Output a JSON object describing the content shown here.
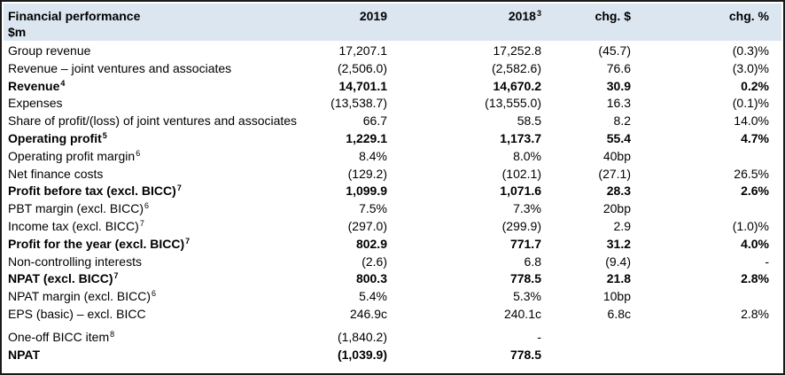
{
  "header": {
    "title": "Financial performance",
    "unit": "$m",
    "col_2019": "2019",
    "col_2018": "2018",
    "col_2018_note": "3",
    "col_chg": "chg. $",
    "col_pct": "chg. %"
  },
  "rows": [
    {
      "label": "Group revenue",
      "note": "",
      "v2019": "17,207.1",
      "v2018": "17,252.8",
      "chg": "(45.7)",
      "pct": "(0.3)%",
      "bold": false
    },
    {
      "label": "Revenue – joint ventures and associates",
      "note": "",
      "v2019": "(2,506.0)",
      "v2018": "(2,582.6)",
      "chg": "76.6",
      "pct": "(3.0)%",
      "bold": false
    },
    {
      "label": "Revenue",
      "note": "4",
      "v2019": "14,701.1",
      "v2018": "14,670.2",
      "chg": "30.9",
      "pct": "0.2%",
      "bold": true
    },
    {
      "label": "Expenses",
      "note": "",
      "v2019": "(13,538.7)",
      "v2018": "(13,555.0)",
      "chg": "16.3",
      "pct": "(0.1)%",
      "bold": false
    },
    {
      "label": "Share of profit/(loss) of joint ventures and associates",
      "note": "",
      "v2019": "66.7",
      "v2018": "58.5",
      "chg": "8.2",
      "pct": "14.0%",
      "bold": false
    },
    {
      "label": "Operating profit",
      "note": "5",
      "v2019": "1,229.1",
      "v2018": "1,173.7",
      "chg": "55.4",
      "pct": "4.7%",
      "bold": true
    },
    {
      "label": "Operating profit margin",
      "note": "6",
      "v2019": "8.4%",
      "v2018": "8.0%",
      "chg": "40bp",
      "pct": "",
      "bold": false
    },
    {
      "label": "Net finance costs",
      "note": "",
      "v2019": "(129.2)",
      "v2018": "(102.1)",
      "chg": "(27.1)",
      "pct": "26.5%",
      "bold": false
    },
    {
      "label": "Profit before tax (excl. BICC)",
      "note": "7",
      "v2019": "1,099.9",
      "v2018": "1,071.6",
      "chg": "28.3",
      "pct": "2.6%",
      "bold": true
    },
    {
      "label": "PBT margin (excl. BICC)",
      "note": "6",
      "v2019": "7.5%",
      "v2018": "7.3%",
      "chg": "20bp",
      "pct": "",
      "bold": false
    },
    {
      "label": "Income tax (excl. BICC)",
      "note": "7",
      "v2019": "(297.0)",
      "v2018": "(299.9)",
      "chg": "2.9",
      "pct": "(1.0)%",
      "bold": false
    },
    {
      "label": "Profit for the year (excl. BICC)",
      "note": "7",
      "v2019": "802.9",
      "v2018": "771.7",
      "chg": "31.2",
      "pct": "4.0%",
      "bold": true
    },
    {
      "label": "Non-controlling interests",
      "note": "",
      "v2019": "(2.6)",
      "v2018": "6.8",
      "chg": "(9.4)",
      "pct": "-",
      "bold": false
    },
    {
      "label": "NPAT (excl. BICC)",
      "note": "7",
      "v2019": "800.3",
      "v2018": "778.5",
      "chg": "21.8",
      "pct": "2.8%",
      "bold": true
    },
    {
      "label": "NPAT margin (excl. BICC)",
      "note": "6",
      "v2019": "5.4%",
      "v2018": "5.3%",
      "chg": "10bp",
      "pct": "",
      "bold": false
    },
    {
      "label": "EPS (basic) – excl. BICC",
      "note": "",
      "v2019": "246.9c",
      "v2018": "240.1c",
      "chg": "6.8c",
      "pct": "2.8%",
      "bold": false
    },
    {
      "label": "One-off BICC item",
      "note": "8",
      "v2019": "(1,840.2)",
      "v2018": "-",
      "chg": "",
      "pct": "",
      "bold": false
    },
    {
      "label": "NPAT",
      "note": "",
      "v2019": "(1,039.9)",
      "v2018": "778.5",
      "chg": "",
      "pct": "",
      "bold": true
    }
  ],
  "colors": {
    "header_bg": "#dce6f1",
    "border": "#1a1a1a",
    "text": "#000000"
  }
}
